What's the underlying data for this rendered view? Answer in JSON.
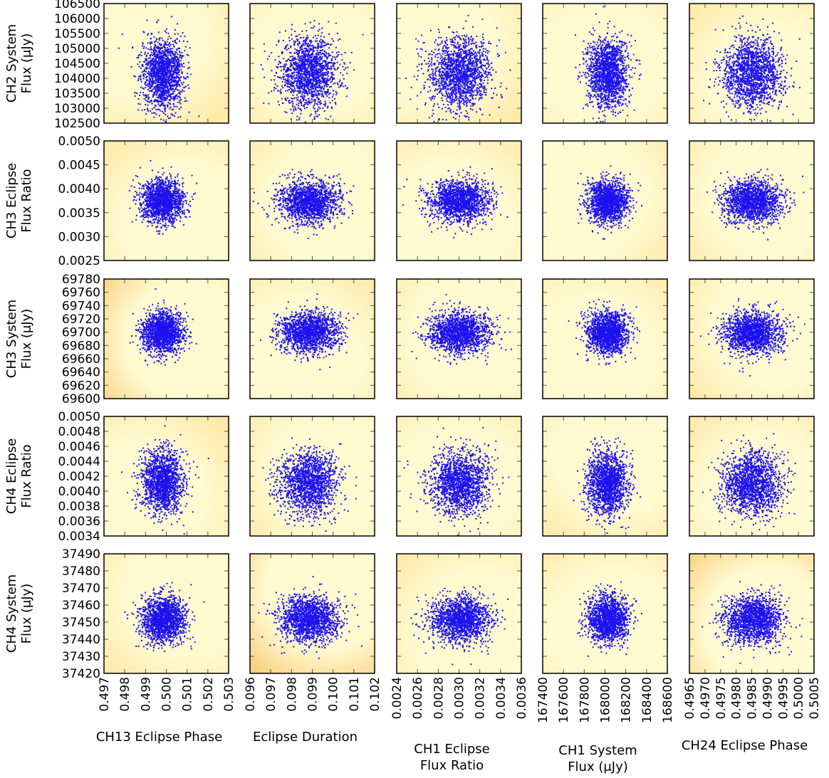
{
  "figure": {
    "panel_background_colors": [
      "#fffad0",
      "#ffe9a8",
      "#f9cf7e"
    ],
    "marker_color": "#1d12f0",
    "axis_color": "#000000"
  },
  "chart_data": {
    "type": "scatter",
    "description": "MCMC posterior correlation grid: 5 rows x 5 columns of scatter panels",
    "points_per_panel": "about 4000 (random samples approximated by Gaussian clouds)",
    "columns": [
      {
        "label_lines": [
          "CH13 Eclipse Phase"
        ],
        "xlim": [
          0.497,
          0.503
        ],
        "ticks": [
          "0.497",
          "0.498",
          "0.499",
          "0.500",
          "0.501",
          "0.502",
          "0.503"
        ],
        "center": 0.4998,
        "spread": 0.00055
      },
      {
        "label_lines": [
          "Eclipse Duration"
        ],
        "xlim": [
          0.096,
          0.102
        ],
        "ticks": [
          "0.096",
          "0.097",
          "0.098",
          "0.099",
          "0.100",
          "0.101",
          "0.102"
        ],
        "center": 0.0988,
        "spread": 0.00078
      },
      {
        "label_lines": [
          "CH1 Eclipse",
          "Flux Ratio"
        ],
        "xlim": [
          0.0024,
          0.0036
        ],
        "ticks": [
          "0.0024",
          "0.0026",
          "0.0028",
          "0.0030",
          "0.0032",
          "0.0034",
          "0.0036"
        ],
        "center": 0.003,
        "spread": 0.00016
      },
      {
        "label_lines": [
          "CH1 System",
          "Flux (μJy)"
        ],
        "xlim": [
          167400,
          168600
        ],
        "ticks": [
          "167400",
          "167600",
          "167800",
          "168000",
          "168200",
          "168400",
          "168600"
        ],
        "center": 168020,
        "spread": 105
      },
      {
        "label_lines": [
          "CH24 Eclipse Phase"
        ],
        "xlim": [
          0.4965,
          0.5005
        ],
        "ticks": [
          "0.4965",
          "0.4970",
          "0.4975",
          "0.4980",
          "0.4985",
          "0.4990",
          "0.4995",
          "0.5000",
          "0.5005"
        ],
        "center": 0.4985,
        "spread": 0.00052
      }
    ],
    "rows": [
      {
        "label_lines": [
          "CH2 System",
          "Flux (μJy)"
        ],
        "ylim": [
          102500,
          106500
        ],
        "ticks": [
          "102500",
          "103000",
          "103500",
          "104000",
          "104500",
          "105000",
          "105500",
          "106000",
          "106500"
        ],
        "center": 104200,
        "spread": 640
      },
      {
        "label_lines": [
          "CH3 Eclipse",
          "Flux Ratio"
        ],
        "ylim": [
          0.0025,
          0.005
        ],
        "ticks": [
          "0.0025",
          "0.0030",
          "0.0035",
          "0.0040",
          "0.0045",
          "0.0050"
        ],
        "center": 0.00375,
        "spread": 0.00024
      },
      {
        "label_lines": [
          "CH3 System",
          "Flux (μJy)"
        ],
        "ylim": [
          69600,
          69780
        ],
        "ticks": [
          "69600",
          "69620",
          "69640",
          "69660",
          "69680",
          "69700",
          "69720",
          "69740",
          "69760",
          "69780"
        ],
        "center": 69700,
        "spread": 17
      },
      {
        "label_lines": [
          "CH4 Eclipse",
          "Flux Ratio"
        ],
        "ylim": [
          0.0034,
          0.005
        ],
        "ticks": [
          "0.0034",
          "0.0036",
          "0.0038",
          "0.0040",
          "0.0042",
          "0.0044",
          "0.0046",
          "0.0048",
          "0.0050"
        ],
        "center": 0.00412,
        "spread": 0.00023
      },
      {
        "label_lines": [
          "CH4 System",
          "Flux (μJy)"
        ],
        "ylim": [
          37420,
          37490
        ],
        "ticks": [
          "37420",
          "37430",
          "37440",
          "37450",
          "37460",
          "37470",
          "37480",
          "37490"
        ],
        "center": 37452,
        "spread": 7.5
      }
    ]
  }
}
